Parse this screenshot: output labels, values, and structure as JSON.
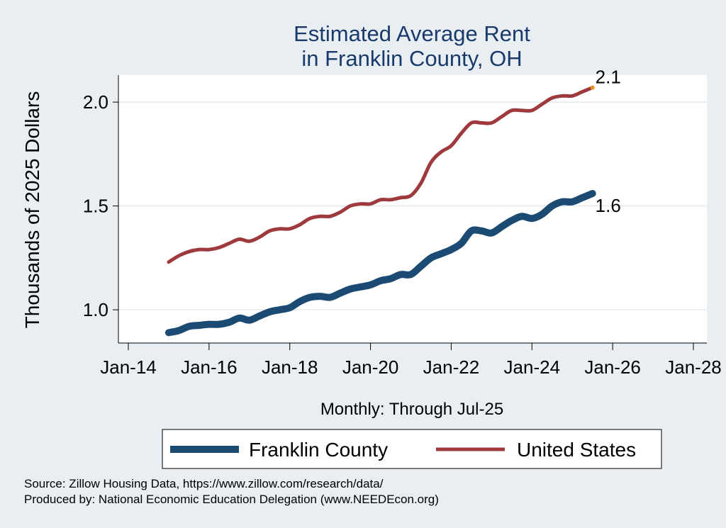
{
  "chart_data": {
    "type": "line",
    "title": [
      "Estimated Average Rent",
      "in Franklin County, OH"
    ],
    "xlabel": "Monthly: Through Jul-25",
    "ylabel": "Thousands of 2025 Dollars",
    "x_ticks": [
      "Jan-14",
      "Jan-16",
      "Jan-18",
      "Jan-20",
      "Jan-22",
      "Jan-24",
      "Jan-26",
      "Jan-28"
    ],
    "y_ticks": [
      "1.0",
      "1.5",
      "2.0"
    ],
    "xlim": [
      "2014-01",
      "2028-01"
    ],
    "ylim": [
      0.84,
      2.13
    ],
    "grid": "horizontal",
    "legend_position": "bottom",
    "series": [
      {
        "name": "Franklin County",
        "color": "#1b4a72",
        "end_label": "1.6",
        "points": [
          [
            "2015-01",
            0.89
          ],
          [
            "2015-04",
            0.9
          ],
          [
            "2015-07",
            0.92
          ],
          [
            "2015-10",
            0.925
          ],
          [
            "2016-01",
            0.93
          ],
          [
            "2016-04",
            0.93
          ],
          [
            "2016-07",
            0.94
          ],
          [
            "2016-10",
            0.96
          ],
          [
            "2017-01",
            0.95
          ],
          [
            "2017-04",
            0.97
          ],
          [
            "2017-07",
            0.99
          ],
          [
            "2017-10",
            1.0
          ],
          [
            "2018-01",
            1.01
          ],
          [
            "2018-04",
            1.04
          ],
          [
            "2018-07",
            1.06
          ],
          [
            "2018-10",
            1.065
          ],
          [
            "2019-01",
            1.06
          ],
          [
            "2019-04",
            1.08
          ],
          [
            "2019-07",
            1.1
          ],
          [
            "2019-10",
            1.11
          ],
          [
            "2020-01",
            1.12
          ],
          [
            "2020-04",
            1.14
          ],
          [
            "2020-07",
            1.15
          ],
          [
            "2020-10",
            1.17
          ],
          [
            "2021-01",
            1.17
          ],
          [
            "2021-04",
            1.21
          ],
          [
            "2021-07",
            1.25
          ],
          [
            "2021-10",
            1.27
          ],
          [
            "2022-01",
            1.29
          ],
          [
            "2022-04",
            1.32
          ],
          [
            "2022-07",
            1.38
          ],
          [
            "2022-10",
            1.38
          ],
          [
            "2023-01",
            1.37
          ],
          [
            "2023-04",
            1.4
          ],
          [
            "2023-07",
            1.43
          ],
          [
            "2023-10",
            1.45
          ],
          [
            "2024-01",
            1.44
          ],
          [
            "2024-04",
            1.46
          ],
          [
            "2024-07",
            1.5
          ],
          [
            "2024-10",
            1.52
          ],
          [
            "2025-01",
            1.52
          ],
          [
            "2025-04",
            1.54
          ],
          [
            "2025-07",
            1.56
          ]
        ]
      },
      {
        "name": "United States",
        "color": "#9e3a3e",
        "end_label": "2.1",
        "points": [
          [
            "2015-01",
            1.23
          ],
          [
            "2015-04",
            1.26
          ],
          [
            "2015-07",
            1.28
          ],
          [
            "2015-10",
            1.29
          ],
          [
            "2016-01",
            1.29
          ],
          [
            "2016-04",
            1.3
          ],
          [
            "2016-07",
            1.32
          ],
          [
            "2016-10",
            1.34
          ],
          [
            "2017-01",
            1.33
          ],
          [
            "2017-04",
            1.35
          ],
          [
            "2017-07",
            1.38
          ],
          [
            "2017-10",
            1.39
          ],
          [
            "2018-01",
            1.39
          ],
          [
            "2018-04",
            1.41
          ],
          [
            "2018-07",
            1.44
          ],
          [
            "2018-10",
            1.45
          ],
          [
            "2019-01",
            1.45
          ],
          [
            "2019-04",
            1.47
          ],
          [
            "2019-07",
            1.5
          ],
          [
            "2019-10",
            1.51
          ],
          [
            "2020-01",
            1.51
          ],
          [
            "2020-04",
            1.53
          ],
          [
            "2020-07",
            1.53
          ],
          [
            "2020-10",
            1.54
          ],
          [
            "2021-01",
            1.55
          ],
          [
            "2021-04",
            1.61
          ],
          [
            "2021-07",
            1.71
          ],
          [
            "2021-10",
            1.76
          ],
          [
            "2022-01",
            1.79
          ],
          [
            "2022-04",
            1.85
          ],
          [
            "2022-07",
            1.9
          ],
          [
            "2022-10",
            1.9
          ],
          [
            "2023-01",
            1.9
          ],
          [
            "2023-04",
            1.93
          ],
          [
            "2023-07",
            1.96
          ],
          [
            "2023-10",
            1.96
          ],
          [
            "2024-01",
            1.96
          ],
          [
            "2024-04",
            1.99
          ],
          [
            "2024-07",
            2.02
          ],
          [
            "2024-10",
            2.03
          ],
          [
            "2025-01",
            2.03
          ],
          [
            "2025-04",
            2.05
          ],
          [
            "2025-07",
            2.07
          ]
        ]
      }
    ]
  },
  "source_lines": [
    "Source: Zillow Housing Data, https://www.zillow.com/research/data/",
    "Produced by: National Economic Education Delegation (www.NEEDEcon.org)"
  ],
  "colors": {
    "background": "#e8eef2",
    "plot_background": "#ffffff",
    "title": "#1a3a6b",
    "gridline": "#e8eef2"
  }
}
